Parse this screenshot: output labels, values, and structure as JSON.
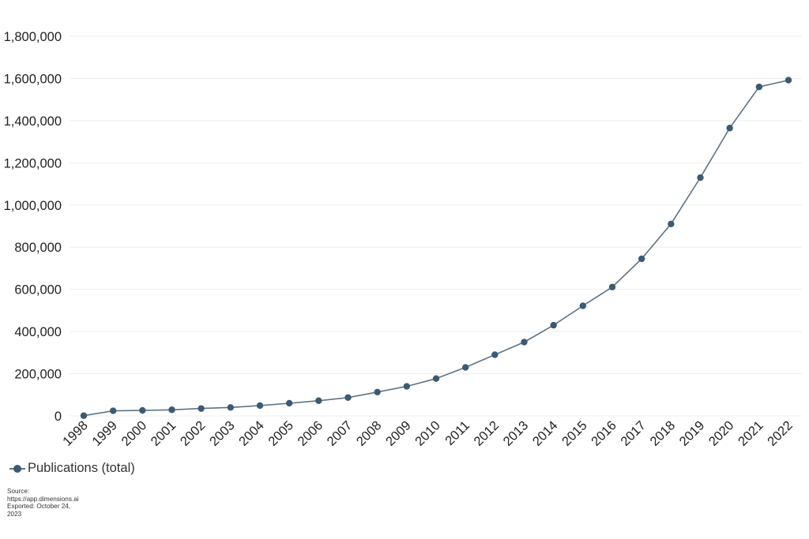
{
  "chart_data": {
    "type": "line",
    "title": "",
    "xlabel": "",
    "ylabel": "",
    "categories": [
      "1998",
      "1999",
      "2000",
      "2001",
      "2002",
      "2003",
      "2004",
      "2005",
      "2006",
      "2007",
      "2008",
      "2009",
      "2010",
      "2011",
      "2012",
      "2013",
      "2014",
      "2015",
      "2016",
      "2017",
      "2018",
      "2019",
      "2020",
      "2021",
      "2022"
    ],
    "series": [
      {
        "name": "Publications (total)",
        "color": "#3d5a73",
        "line_color": "#5e7384",
        "values": [
          1000,
          24000,
          26000,
          29000,
          35000,
          40000,
          49000,
          60000,
          72000,
          87000,
          113000,
          140000,
          177000,
          230000,
          290000,
          350000,
          430000,
          522000,
          611000,
          745000,
          910000,
          1130000,
          1365000,
          1560000,
          1592000
        ]
      }
    ],
    "ylim": [
      0,
      1800000
    ],
    "yticks": [
      0,
      200000,
      400000,
      600000,
      800000,
      1000000,
      1200000,
      1400000,
      1600000,
      1800000
    ],
    "ytick_labels": [
      "0",
      "200,000",
      "400,000",
      "600,000",
      "800,000",
      "1,000,000",
      "1,200,000",
      "1,400,000",
      "1,600,000",
      "1,800,000"
    ],
    "grid": true,
    "legend_position": "bottom-left",
    "xtick_rotation": -45
  },
  "legend": {
    "label": "Publications (total)"
  },
  "source": {
    "line1": "Source:",
    "line2": "https://app.dimensions.ai",
    "line3": "Exported: October 24,",
    "line4": "2023"
  }
}
